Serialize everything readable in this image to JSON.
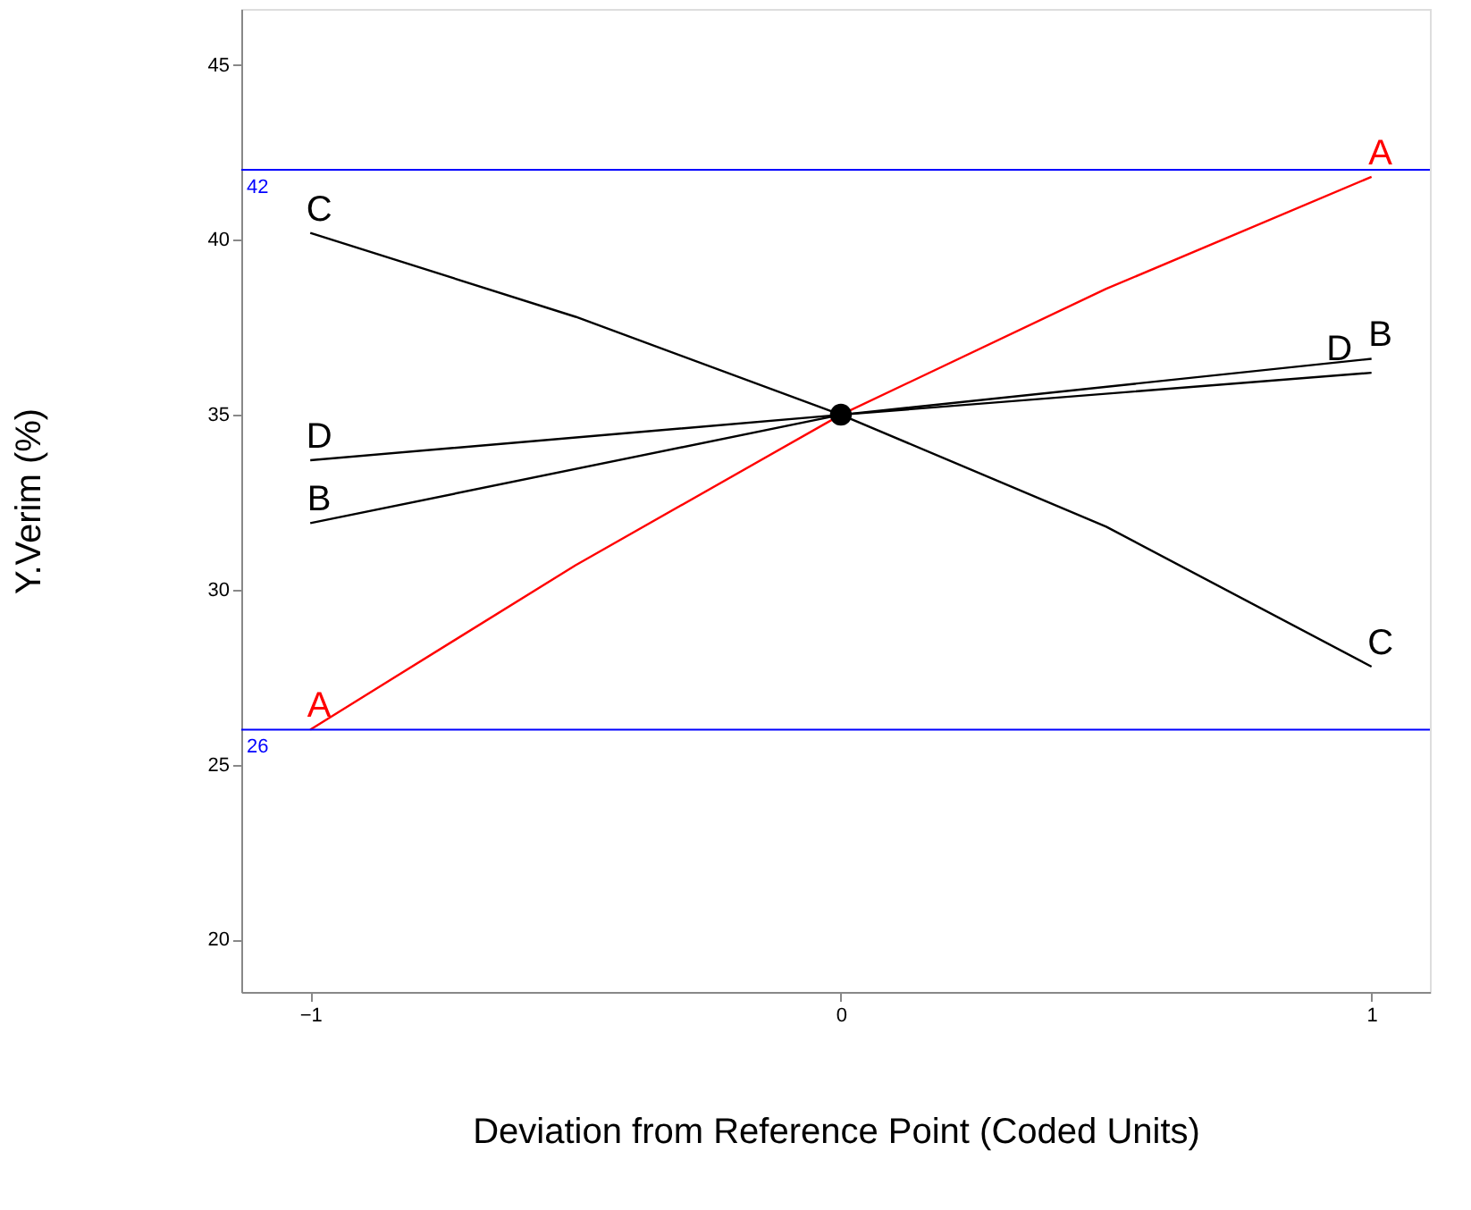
{
  "chart_data": {
    "type": "line",
    "xlabel": "Deviation from Reference Point (Coded Units)",
    "ylabel": "Y.Verim (%)",
    "xlim": [
      -1.13,
      1.11
    ],
    "xticks": [
      -1,
      0,
      1
    ],
    "ylim": [
      18.5,
      46.6
    ],
    "yticks": [
      20,
      25,
      30,
      35,
      40,
      45
    ],
    "grid": false,
    "marker": "none",
    "line_style": "solid",
    "series": [
      {
        "name": "A",
        "color": "#ff0000",
        "x": [
          -1,
          -0.5,
          0,
          0.5,
          1
        ],
        "values": [
          26.0,
          30.7,
          35.0,
          38.6,
          41.8
        ]
      },
      {
        "name": "B",
        "color": "#000000",
        "x": [
          -1,
          0,
          1
        ],
        "values": [
          31.9,
          35.0,
          36.6
        ]
      },
      {
        "name": "C",
        "color": "#000000",
        "x": [
          -1,
          -0.5,
          0,
          0.5,
          1
        ],
        "values": [
          40.2,
          37.8,
          35.0,
          31.8,
          27.8
        ]
      },
      {
        "name": "D",
        "color": "#000000",
        "x": [
          -1,
          0,
          1
        ],
        "values": [
          33.7,
          35.0,
          36.2
        ]
      },
      {
        "type": "scatter",
        "color": "#000000",
        "marker": "circle",
        "x": [
          0
        ],
        "values": [
          35.0
        ]
      }
    ],
    "ref_lines": [
      {
        "axis": "y",
        "value": 42,
        "label": "42",
        "color": "#0000ff"
      },
      {
        "axis": "y",
        "value": 26,
        "label": "26",
        "color": "#0000ff"
      }
    ]
  }
}
